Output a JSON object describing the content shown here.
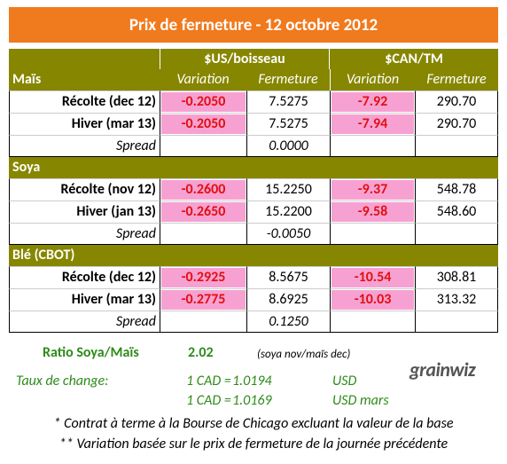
{
  "title": "Prix de fermeture - 12 octobre 2012",
  "columns": {
    "us": "$US/boisseau",
    "cad": "$CAN/TM",
    "variation": "Variation",
    "close": "Fermeture"
  },
  "spread_label": "Spread",
  "sections": [
    {
      "name": "Maïs",
      "rows": [
        {
          "label": "Récolte (dec 12)",
          "us_var": "-0.2050",
          "us_close": "7.5275",
          "cad_var": "-7.92",
          "cad_close": "290.70"
        },
        {
          "label": "Hiver (mar 13)",
          "us_var": "-0.2050",
          "us_close": "7.5275",
          "cad_var": "-7.94",
          "cad_close": "290.70"
        }
      ],
      "spread": "0.0000"
    },
    {
      "name": "Soya",
      "rows": [
        {
          "label": "Récolte (nov 12)",
          "us_var": "-0.2600",
          "us_close": "15.2250",
          "cad_var": "-9.37",
          "cad_close": "548.78"
        },
        {
          "label": "Hiver (jan 13)",
          "us_var": "-0.2650",
          "us_close": "15.2200",
          "cad_var": "-9.58",
          "cad_close": "548.60"
        }
      ],
      "spread": "-0.0050"
    },
    {
      "name": "Blé (CBOT)",
      "rows": [
        {
          "label": "Récolte (dec 12)",
          "us_var": "-0.2925",
          "us_close": "8.5675",
          "cad_var": "-10.54",
          "cad_close": "308.81"
        },
        {
          "label": "Hiver (mar 13)",
          "us_var": "-0.2775",
          "us_close": "8.6925",
          "cad_var": "-10.03",
          "cad_close": "313.32"
        }
      ],
      "spread": "0.1250"
    }
  ],
  "ratio": {
    "label": "Ratio Soya/Maïs",
    "value": "2.02",
    "note": "(soya nov/maïs dec)"
  },
  "exchange": {
    "label": "Taux de change:",
    "rates": [
      {
        "prefix": "1 CAD =",
        "value": "1.0194",
        "unit": "USD"
      },
      {
        "prefix": "1 CAD =",
        "value": "1.0169",
        "unit": "USD mars"
      }
    ]
  },
  "logo": "grainwiz",
  "notes": [
    "* Contrat à terme à la Bourse de Chicago excluant la valeur de la base",
    "** Variation basée sur le prix de fermeture de la journée précédente"
  ]
}
